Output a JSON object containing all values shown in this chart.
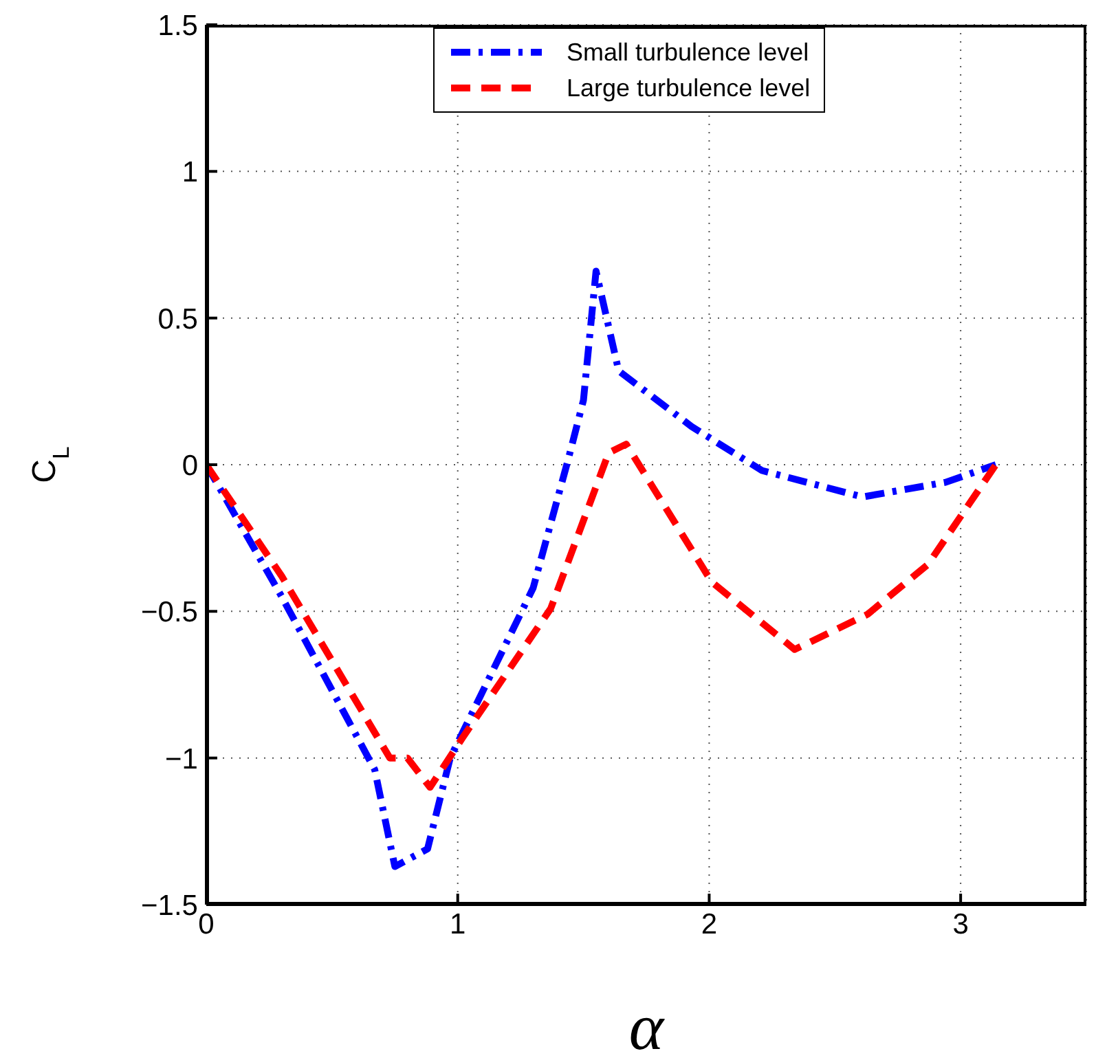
{
  "chart_data": {
    "type": "line",
    "xlabel": "α",
    "ylabel": "C$_{L}$",
    "xlim": [
      0,
      3.5
    ],
    "xticks": [
      0,
      1,
      2,
      3
    ],
    "ylim": [
      -1.5,
      1.5
    ],
    "yticks": [
      {
        "value": -1.5,
        "label": "−1.5"
      },
      {
        "value": -1,
        "label": "−1"
      },
      {
        "value": -0.5,
        "label": "−0.5"
      },
      0,
      0.5,
      1,
      1.5
    ],
    "grid": true,
    "legend": "top right",
    "marker": "none",
    "series": [
      {
        "name": "Small turbulence level",
        "color": "#0000ff",
        "line_style": "dashdot",
        "x": [
          0,
          0.3,
          0.67,
          0.75,
          0.88,
          0.97,
          1.3,
          1.44,
          1.5,
          1.55,
          1.64,
          1.93,
          2.21,
          2.61,
          2.94,
          3.14
        ],
        "values": [
          0,
          -0.45,
          -1.04,
          -1.37,
          -1.31,
          -1.0,
          -0.42,
          0.02,
          0.22,
          0.66,
          0.32,
          0.13,
          -0.02,
          -0.11,
          -0.06,
          0
        ]
      },
      {
        "name": "Large turbulence level",
        "color": "#ff0000",
        "line_style": "dashed",
        "x": [
          0,
          0.3,
          0.73,
          0.8,
          0.89,
          1.02,
          1.37,
          1.6,
          1.67,
          2.01,
          2.34,
          2.63,
          2.87,
          3.14
        ],
        "values": [
          0,
          -0.38,
          -1.0,
          -1.0,
          -1.1,
          -0.93,
          -0.49,
          0.04,
          0.07,
          -0.4,
          -0.63,
          -0.51,
          -0.34,
          0
        ]
      }
    ]
  }
}
